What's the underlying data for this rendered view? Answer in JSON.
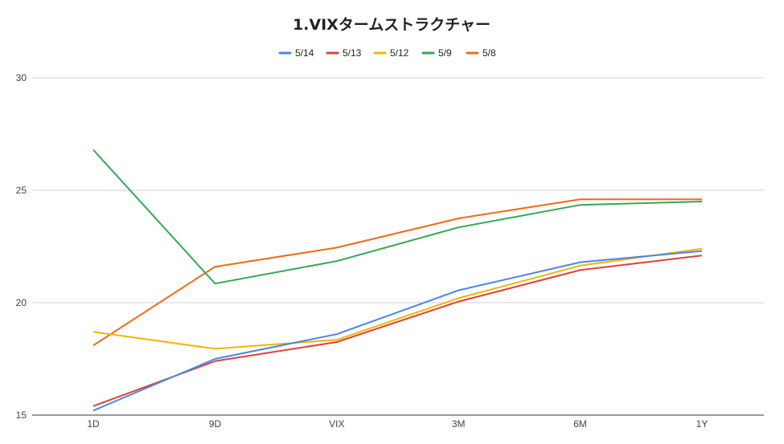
{
  "chart_data": {
    "type": "line",
    "title": "1.VIXタームストラクチャー",
    "xlabel": "",
    "ylabel": "",
    "categories": [
      "1D",
      "9D",
      "VIX",
      "3M",
      "6M",
      "1Y"
    ],
    "ylim": [
      15,
      30
    ],
    "yticks": [
      "15",
      "20",
      "25",
      "30"
    ],
    "grid": true,
    "legend_position": "top",
    "series": [
      {
        "name": "5/14",
        "color": "#4a86e8",
        "values": [
          15.2,
          17.5,
          18.6,
          20.55,
          21.8,
          22.3
        ]
      },
      {
        "name": "5/13",
        "color": "#e0413a",
        "values": [
          15.4,
          17.4,
          18.25,
          20.05,
          21.45,
          22.1
        ]
      },
      {
        "name": "5/12",
        "color": "#f4b400",
        "values": [
          18.7,
          17.95,
          18.35,
          20.2,
          21.65,
          22.4
        ]
      },
      {
        "name": "5/9",
        "color": "#34a853",
        "values": [
          26.8,
          20.85,
          21.85,
          23.35,
          24.35,
          24.5
        ]
      },
      {
        "name": "5/8",
        "color": "#f26b15",
        "values": [
          18.1,
          21.6,
          22.45,
          23.75,
          24.6,
          24.6
        ]
      }
    ]
  }
}
